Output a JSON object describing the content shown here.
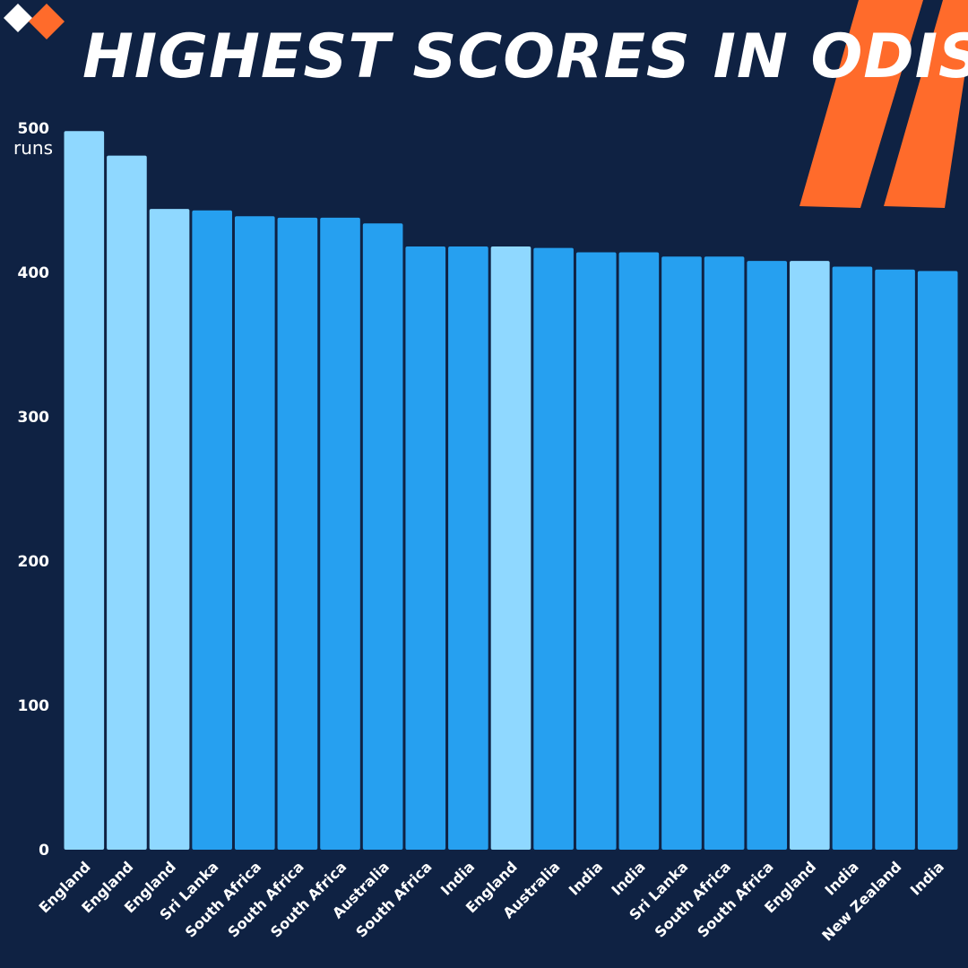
{
  "title": "HIGHEST SCORES IN ODIS",
  "colors": {
    "background": "#0f2243",
    "accent": "#ff6b2b",
    "bar_default": "#26a0f0",
    "bar_highlight": "#8fd8ff"
  },
  "chart_data": {
    "type": "bar",
    "title": "HIGHEST SCORES IN ODIS",
    "ylabel": "runs",
    "xlabel": "",
    "ylim": [
      0,
      500
    ],
    "yticks": [
      0,
      100,
      200,
      300,
      400,
      500
    ],
    "grid": false,
    "categories": [
      "England",
      "England",
      "England",
      "Sri Lanka",
      "South Africa",
      "South Africa",
      "South Africa",
      "Australia",
      "South Africa",
      "India",
      "England",
      "Australia",
      "India",
      "India",
      "Sri Lanka",
      "South Africa",
      "South Africa",
      "England",
      "India",
      "New Zealand",
      "India"
    ],
    "values": [
      498,
      481,
      444,
      443,
      439,
      438,
      438,
      434,
      418,
      418,
      418,
      417,
      414,
      414,
      411,
      411,
      408,
      408,
      404,
      402,
      401
    ],
    "highlight_category": "England"
  }
}
